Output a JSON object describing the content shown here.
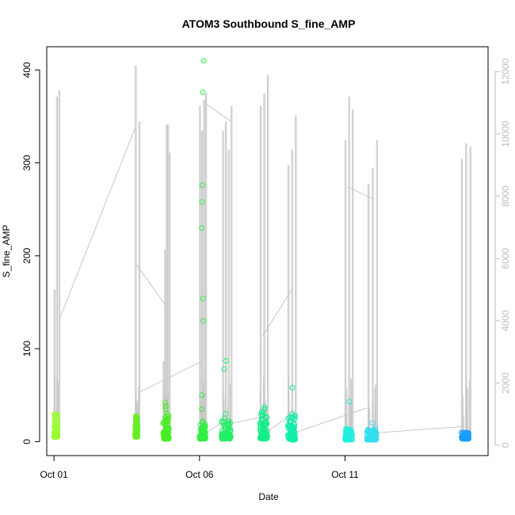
{
  "chart_data": {
    "type": "scatter",
    "title": "ATOM3 Southbound S_fine_AMP",
    "xlabel": "Date",
    "ylabel": "S_fine_AMP",
    "x_axis": {
      "kind": "date",
      "range": [
        "2023-09-30T18:00",
        "2023-10-15T22:00"
      ],
      "ticks": [
        {
          "value": "2023-10-01T00:00",
          "label": "Oct 01"
        },
        {
          "value": "2023-10-06T00:00",
          "label": "Oct 06"
        },
        {
          "value": "2023-10-11T00:00",
          "label": "Oct 11"
        }
      ]
    },
    "y_left": {
      "range": [
        -15,
        425
      ],
      "ticks": [
        0,
        100,
        200,
        300,
        400
      ]
    },
    "y_right": {
      "range": [
        -330,
        12800
      ],
      "ticks": [
        0,
        2000,
        4000,
        6000,
        8000,
        10000,
        12000
      ],
      "color": "#bdbdbd"
    },
    "grid": false,
    "legend": "none",
    "scatter_series": {
      "marker": "open-circle",
      "clusters": [
        {
          "start": "2023-10-01T00:00",
          "end": "2023-10-01T03:00",
          "color": "#99ff33",
          "y_min": 5,
          "y_max": 30,
          "highs": []
        },
        {
          "start": "2023-10-03T19:00",
          "end": "2023-10-03T21:00",
          "color": "#66ee22",
          "y_min": 5,
          "y_max": 28,
          "highs": []
        },
        {
          "start": "2023-10-04T18:00",
          "end": "2023-10-04T23:00",
          "color": "#44ee22",
          "y_min": 3,
          "y_max": 32,
          "highs": [
            35,
            38,
            42
          ]
        },
        {
          "start": "2023-10-06T00:00",
          "end": "2023-10-06T05:00",
          "color": "#33ee44",
          "y_min": 3,
          "y_max": 22,
          "highs": [
            35,
            50,
            130,
            154,
            230,
            258,
            276,
            376,
            410
          ]
        },
        {
          "start": "2023-10-06T18:00",
          "end": "2023-10-07T02:00",
          "color": "#22ee66",
          "y_min": 3,
          "y_max": 22,
          "highs": [
            25,
            30,
            78,
            87
          ]
        },
        {
          "start": "2023-10-08T02:00",
          "end": "2023-10-08T08:00",
          "color": "#11ee88",
          "y_min": 3,
          "y_max": 32,
          "highs": [
            35,
            37
          ]
        },
        {
          "start": "2023-10-09T01:00",
          "end": "2023-10-09T07:00",
          "color": "#11eeaa",
          "y_min": 2,
          "y_max": 28,
          "highs": [
            30,
            58
          ]
        },
        {
          "start": "2023-10-11T00:00",
          "end": "2023-10-11T06:00",
          "color": "#22eedd",
          "y_min": 2,
          "y_max": 14,
          "highs": [
            43
          ]
        },
        {
          "start": "2023-10-11T18:00",
          "end": "2023-10-12T02:00",
          "color": "#33ddee",
          "y_min": 2,
          "y_max": 14,
          "highs": [
            20
          ]
        },
        {
          "start": "2023-10-15T00:00",
          "end": "2023-10-15T06:00",
          "color": "#1a9eff",
          "y_min": 3,
          "y_max": 11,
          "highs": []
        }
      ]
    },
    "line_series": {
      "axis": "right",
      "color": "#c8c8c8",
      "bursts": [
        {
          "start": "2023-10-01T00:00",
          "end": "2023-10-01T04:00",
          "peaks": [
            5000,
            11200,
            11400
          ]
        },
        {
          "start": "2023-10-03T19:00",
          "end": "2023-10-03T22:00",
          "peaks": [
            12200,
            10400
          ]
        },
        {
          "start": "2023-10-04T18:00",
          "end": "2023-10-04T23:00",
          "peaks": [
            2700,
            6300,
            10300,
            10300,
            9400
          ]
        },
        {
          "start": "2023-10-06T00:00",
          "end": "2023-10-06T05:00",
          "peaks": [
            10900,
            10100,
            11100,
            11300
          ]
        },
        {
          "start": "2023-10-06T19:00",
          "end": "2023-10-07T02:00",
          "peaks": [
            10100,
            10400,
            9500,
            10900
          ]
        },
        {
          "start": "2023-10-08T02:00",
          "end": "2023-10-08T08:00",
          "peaks": [
            10900,
            11300,
            11900
          ]
        },
        {
          "start": "2023-10-09T01:00",
          "end": "2023-10-09T07:00",
          "peaks": [
            9000,
            9500,
            10600
          ]
        },
        {
          "start": "2023-10-11T00:00",
          "end": "2023-10-11T06:00",
          "peaks": [
            9800,
            11200,
            10800
          ]
        },
        {
          "start": "2023-10-11T19:00",
          "end": "2023-10-12T02:00",
          "peaks": [
            8400,
            8900,
            9800
          ]
        },
        {
          "start": "2023-10-15T00:00",
          "end": "2023-10-15T07:00",
          "peaks": [
            9200,
            9700,
            9600
          ]
        }
      ],
      "connectors": [
        [
          [
            "2023-10-01T04:00",
            4000
          ],
          [
            "2023-10-03T19:00",
            10200
          ]
        ],
        [
          [
            "2023-10-03T20:00",
            5800
          ],
          [
            "2023-10-04T20:00",
            4500
          ]
        ],
        [
          [
            "2023-10-03T22:00",
            1700
          ],
          [
            "2023-10-06T02:00",
            2700
          ]
        ],
        [
          [
            "2023-10-06T04:00",
            11000
          ],
          [
            "2023-10-07T02:00",
            10400
          ]
        ],
        [
          [
            "2023-10-06T05:00",
            400
          ],
          [
            "2023-10-07T02:00",
            900
          ]
        ],
        [
          [
            "2023-10-07T02:00",
            700
          ],
          [
            "2023-10-08T02:00",
            900
          ]
        ],
        [
          [
            "2023-10-08T04:00",
            3500
          ],
          [
            "2023-10-09T04:00",
            5000
          ]
        ],
        [
          [
            "2023-10-08T06:00",
            400
          ],
          [
            "2023-10-09T01:00",
            900
          ]
        ],
        [
          [
            "2023-10-09T06:00",
            400
          ],
          [
            "2023-10-11T18:00",
            1200
          ]
        ],
        [
          [
            "2023-10-11T02:00",
            8300
          ],
          [
            "2023-10-12T00:00",
            7900
          ]
        ],
        [
          [
            "2023-10-12T02:00",
            400
          ],
          [
            "2023-10-15T00:00",
            600
          ]
        ]
      ]
    }
  }
}
